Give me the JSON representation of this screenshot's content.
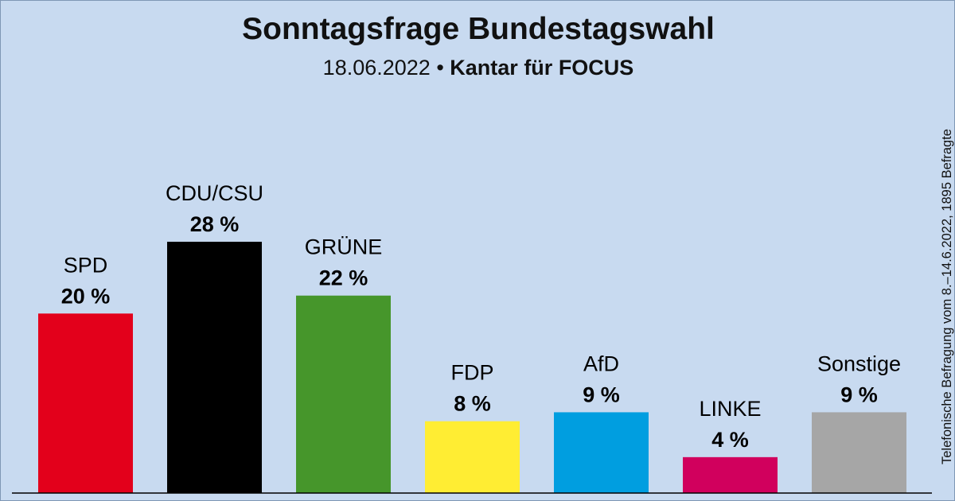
{
  "header": {
    "title": "Sonntagsfrage Bundestagswahl",
    "date": "18.06.2022",
    "separator": "•",
    "source": "Kantar für FOCUS"
  },
  "note": "Telefonische Befragung vom 8.–14.6.2022, 1895 Befragte",
  "colors": {
    "background": "#c8daf0",
    "axis": "#000000"
  },
  "chart_data": {
    "type": "bar",
    "categories": [
      "SPD",
      "CDU/CSU",
      "GRÜNE",
      "FDP",
      "AfD",
      "LINKE",
      "Sonstige"
    ],
    "values": [
      20,
      28,
      22,
      8,
      9,
      4,
      9
    ],
    "value_labels": [
      "20 %",
      "28 %",
      "22 %",
      "8 %",
      "9 %",
      "4 %",
      "9 %"
    ],
    "colors": [
      "#e3001b",
      "#000000",
      "#46962b",
      "#ffed33",
      "#009ee0",
      "#d1005d",
      "#a6a6a6"
    ],
    "unit": "%",
    "ylim": [
      0,
      28
    ],
    "grid": false,
    "legend": false
  }
}
